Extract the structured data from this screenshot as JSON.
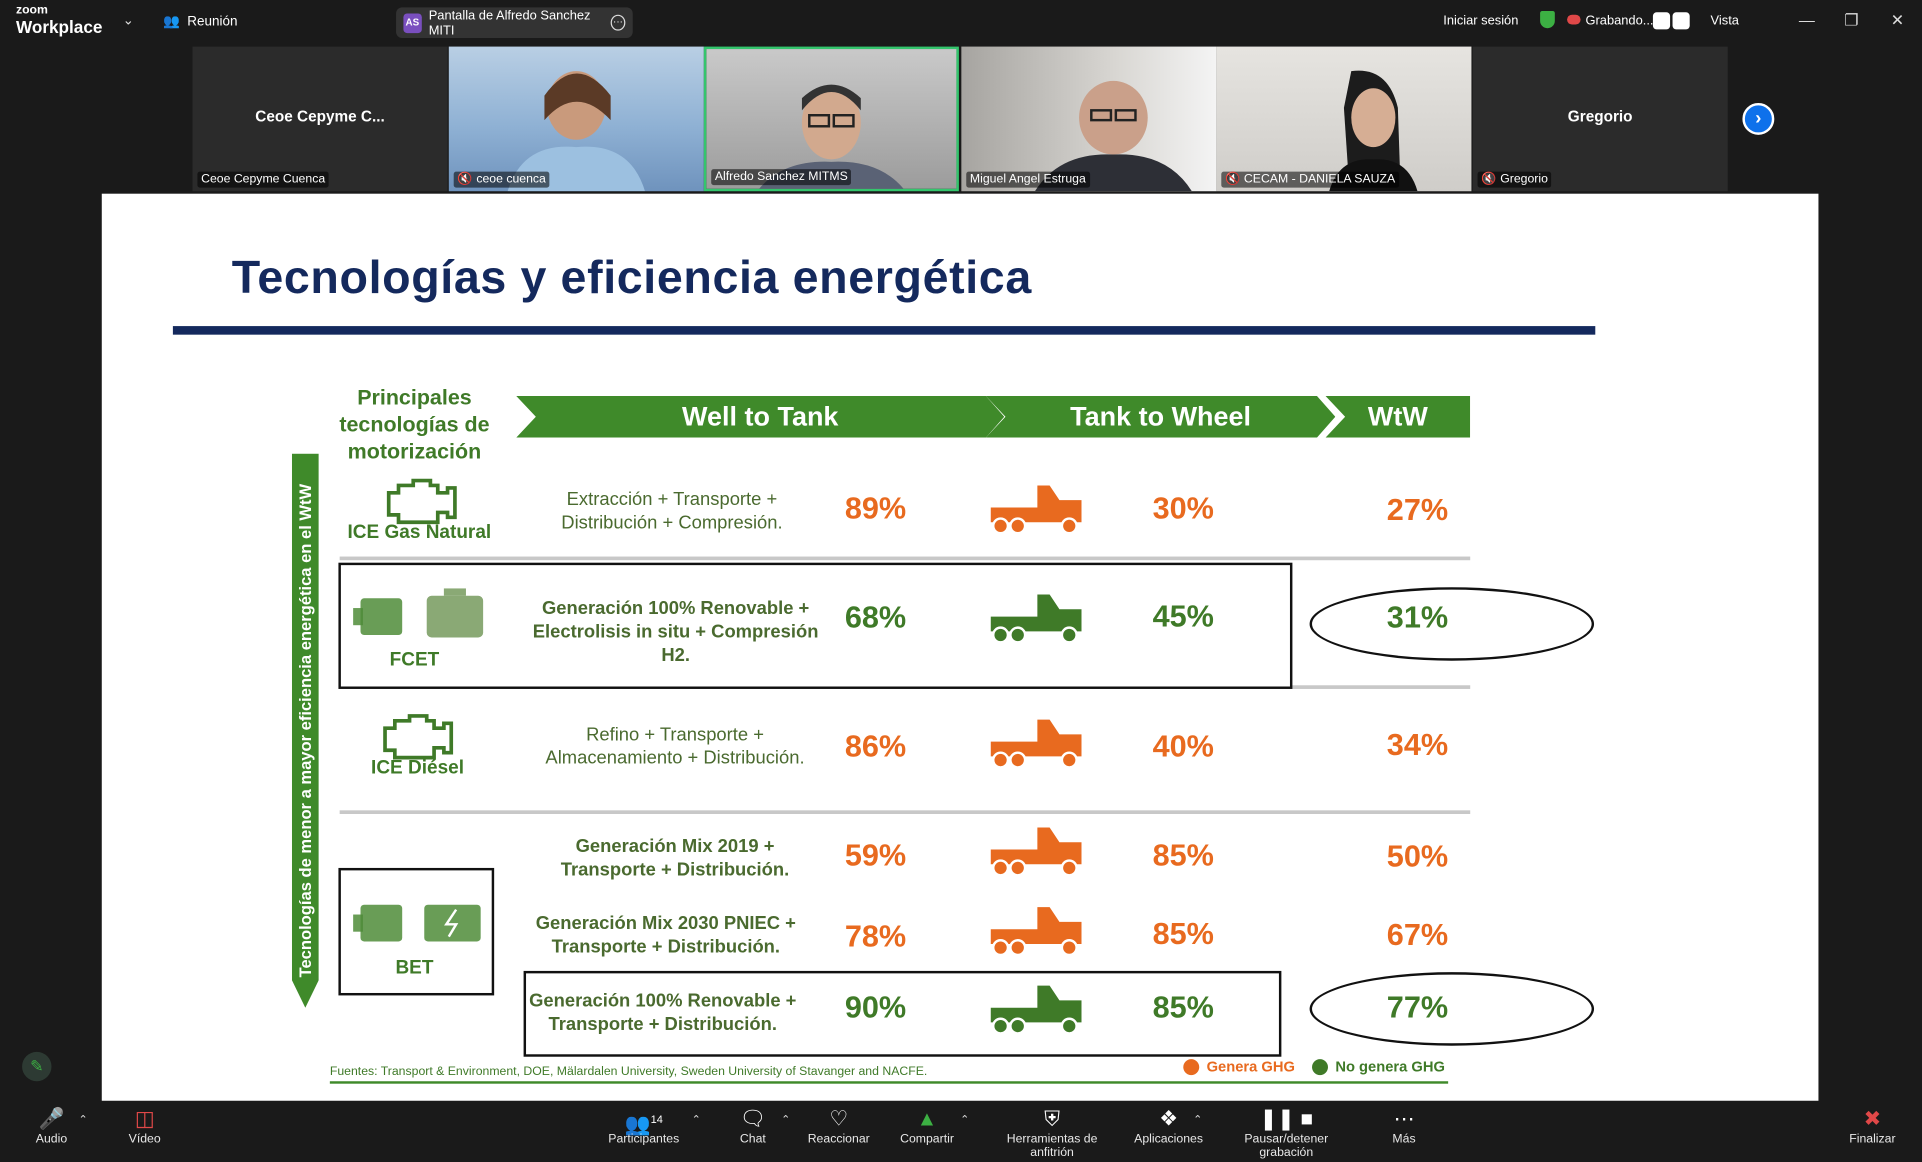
{
  "app": {
    "logo_small": "zoom",
    "logo_big": "Workplace",
    "meeting_label": "Reunión"
  },
  "share_pill": {
    "avatar": "AS",
    "label": "Pantalla de Alfredo Sanchez MITI"
  },
  "topright": {
    "signin": "Iniciar sesión",
    "recording": "Grabando...",
    "view": "Vista"
  },
  "gallery": [
    {
      "big": "Ceoe  Cepyme  C...",
      "name": "Ceoe Cepyme Cuenca",
      "muted": false
    },
    {
      "big": "",
      "name": "ceoe cuenca",
      "muted": true
    },
    {
      "big": "",
      "name": "Alfredo Sanchez MITMS",
      "muted": false
    },
    {
      "big": "",
      "name": "Miguel Angel Estruga",
      "muted": false
    },
    {
      "big": "",
      "name": "CECAM - DANIELA SAUZA",
      "muted": true
    },
    {
      "big": "Gregorio",
      "name": "Gregorio",
      "muted": true
    }
  ],
  "slide": {
    "title": "Tecnologías y eficiencia energética",
    "principales": "Principales tecnologías de motorización",
    "col_wtt": "Well to Tank",
    "col_ttw": "Tank to Wheel",
    "col_wtw": "WtW",
    "vertical_label": "Tecnologías de menor a mayor eficiencia energética en el WtW",
    "techs": {
      "ice_gas": "ICE Gas Natural",
      "fcet": "FCET",
      "ice_diesel": "ICE Diésel",
      "bet": "BET"
    },
    "rows": [
      {
        "process": "Extracción + Transporte + Distribución + Compresión.",
        "wtt": "89%",
        "ttw": "30%",
        "wtw": "27%",
        "color": "#e86a1f"
      },
      {
        "process": "Generación 100% Renovable + Electrolisis in situ + Compresión H2.",
        "wtt": "68%",
        "ttw": "45%",
        "wtw": "31%",
        "color": "#3f7a28"
      },
      {
        "process": "Refino + Transporte + Almacenamiento + Distribución.",
        "wtt": "86%",
        "ttw": "40%",
        "wtw": "34%",
        "color": "#e86a1f"
      },
      {
        "process": "Generación Mix 2019 + Transporte + Distribución.",
        "wtt": "59%",
        "ttw": "85%",
        "wtw": "50%",
        "color": "#e86a1f"
      },
      {
        "process": "Generación Mix 2030 PNIEC + Transporte + Distribución.",
        "wtt": "78%",
        "ttw": "85%",
        "wtw": "67%",
        "color": "#e86a1f"
      },
      {
        "process": "Generación 100% Renovable + Transporte + Distribución.",
        "wtt": "90%",
        "ttw": "85%",
        "wtw": "77%",
        "color": "#3f7a28"
      }
    ],
    "sources": "Fuentes: Transport & Environment, DOE, Mälardalen University, Sweden University of Stavanger and NACFE.",
    "legend_ghg": "Genera GHG",
    "legend_noghg": "No genera GHG",
    "orange": "#e86a1f",
    "green": "#3f7a28",
    "navy": "#14295d"
  },
  "toolbar": {
    "audio": "Audio",
    "video": "Vídeo",
    "participants": "Participantes",
    "participants_count": "14",
    "chat": "Chat",
    "react": "Reaccionar",
    "share": "Compartir",
    "host_tools": "Herramientas de anfitrión",
    "apps": "Aplicaciones",
    "pause_rec": "Pausar/detener grabación",
    "more": "Más",
    "end": "Finalizar"
  }
}
